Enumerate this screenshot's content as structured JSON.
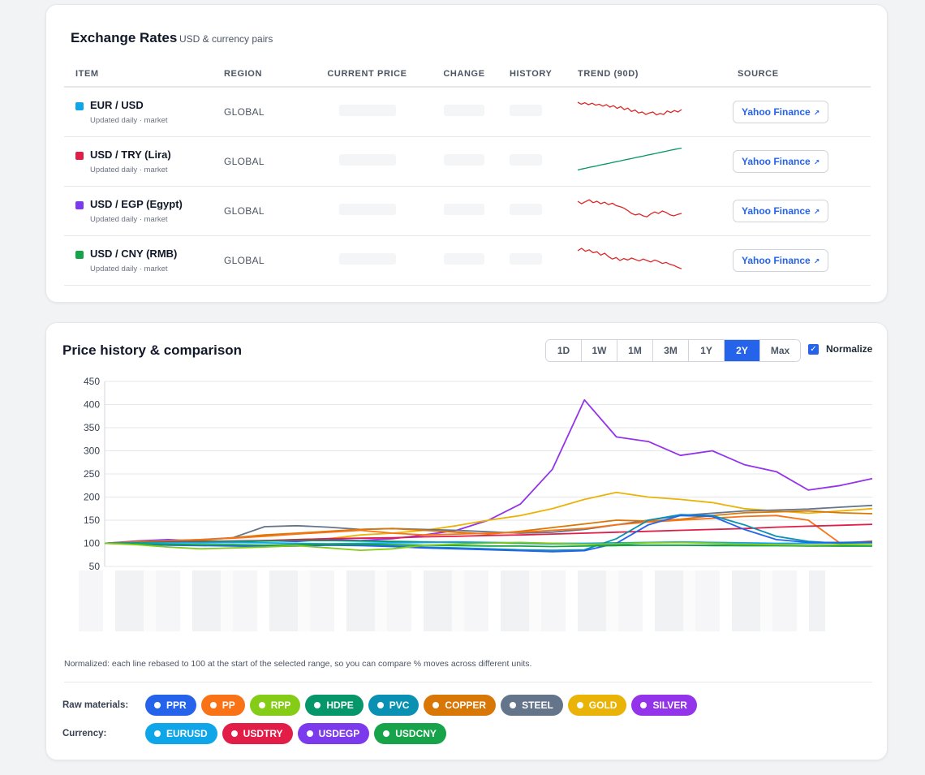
{
  "rates": {
    "title": "Exchange Rates",
    "subtitle": "USD & currency pairs",
    "headers": {
      "item": "ITEM",
      "region": "REGION",
      "current_price": "CURRENT PRICE",
      "change": "CHANGE",
      "history": "HISTORY",
      "trend": "TREND (90D)",
      "source": "SOURCE"
    },
    "rows": [
      {
        "name": "EUR / USD",
        "sub": "Updated daily · market",
        "region": "GLOBAL",
        "color": "#0ea5e9",
        "source": "Yahoo Finance",
        "trend_color": "#dc2626",
        "trend": [
          0.8,
          0.72,
          0.78,
          0.7,
          0.76,
          0.68,
          0.72,
          0.64,
          0.7,
          0.6,
          0.66,
          0.55,
          0.62,
          0.5,
          0.56,
          0.42,
          0.48,
          0.36,
          0.4,
          0.3,
          0.36,
          0.4,
          0.28,
          0.34,
          0.3,
          0.44,
          0.38,
          0.46,
          0.4,
          0.5
        ]
      },
      {
        "name": "USD / TRY (Lira)",
        "sub": "Updated daily · market",
        "region": "GLOBAL",
        "color": "#e11d48",
        "source": "Yahoo Finance",
        "trend_color": "#059669",
        "trend": [
          0.05,
          0.09,
          0.12,
          0.16,
          0.19,
          0.22,
          0.26,
          0.29,
          0.32,
          0.36,
          0.39,
          0.42,
          0.46,
          0.49,
          0.52,
          0.56,
          0.59,
          0.62,
          0.66,
          0.69,
          0.72,
          0.76,
          0.79,
          0.82,
          0.86,
          0.89,
          0.92,
          0.95
        ]
      },
      {
        "name": "USD / EGP (Egypt)",
        "sub": "Updated daily · market",
        "region": "GLOBAL",
        "color": "#7c3aed",
        "source": "Yahoo Finance",
        "trend_color": "#dc2626",
        "trend": [
          0.8,
          0.7,
          0.78,
          0.86,
          0.74,
          0.8,
          0.7,
          0.76,
          0.66,
          0.72,
          0.62,
          0.58,
          0.52,
          0.42,
          0.3,
          0.24,
          0.28,
          0.2,
          0.16,
          0.28,
          0.36,
          0.3,
          0.4,
          0.34,
          0.24,
          0.2,
          0.26,
          0.3
        ]
      },
      {
        "name": "USD / CNY (RMB)",
        "sub": "Updated daily · market",
        "region": "GLOBAL",
        "color": "#16a34a",
        "source": "Yahoo Finance",
        "trend_color": "#dc2626",
        "trend": [
          0.8,
          0.9,
          0.78,
          0.84,
          0.72,
          0.76,
          0.62,
          0.7,
          0.56,
          0.46,
          0.52,
          0.4,
          0.48,
          0.42,
          0.5,
          0.44,
          0.38,
          0.46,
          0.4,
          0.34,
          0.42,
          0.36,
          0.28,
          0.32,
          0.24,
          0.2,
          0.12,
          0.06
        ]
      }
    ]
  },
  "history": {
    "title": "Price history & comparison",
    "ranges": [
      "1D",
      "1W",
      "1M",
      "3M",
      "1Y",
      "2Y",
      "Max"
    ],
    "active_range": "2Y",
    "normalize_label": "Normalize",
    "normalize_checked": true,
    "note": "Normalized: each line rebased to 100 at the start of the selected range, so you can compare % moves across different units.",
    "raw_label": "Raw materials:",
    "currency_label": "Currency:",
    "raw_chips": [
      {
        "label": "PPR",
        "color": "#2563eb"
      },
      {
        "label": "PP",
        "color": "#f97316"
      },
      {
        "label": "RPP",
        "color": "#84cc16"
      },
      {
        "label": "HDPE",
        "color": "#059669"
      },
      {
        "label": "PVC",
        "color": "#0891b2"
      },
      {
        "label": "COPPER",
        "color": "#d97706"
      },
      {
        "label": "STEEL",
        "color": "#64748b"
      },
      {
        "label": "GOLD",
        "color": "#eab308"
      },
      {
        "label": "SILVER",
        "color": "#9333ea"
      }
    ],
    "currency_chips": [
      {
        "label": "EURUSD",
        "color": "#0ea5e9"
      },
      {
        "label": "USDTRY",
        "color": "#e11d48"
      },
      {
        "label": "USDEGP",
        "color": "#7c3aed"
      },
      {
        "label": "USDCNY",
        "color": "#16a34a"
      }
    ]
  },
  "chart_data": {
    "type": "line",
    "y_ticks": [
      "450",
      "400",
      "350",
      "300",
      "250",
      "200",
      "150",
      "100",
      "50"
    ],
    "ylim": [
      50,
      450
    ],
    "grid": true,
    "x": [
      0,
      1,
      2,
      3,
      4,
      5,
      6,
      7,
      8,
      9,
      10,
      11,
      12,
      13,
      14,
      15,
      16,
      17,
      18,
      19,
      20,
      21,
      22,
      23,
      24
    ],
    "series": [
      {
        "key": "silver",
        "color": "#9333ea",
        "values": [
          100,
          105,
          108,
          104,
          102,
          106,
          104,
          108,
          106,
          110,
          118,
          128,
          150,
          185,
          260,
          410,
          330,
          320,
          290,
          300,
          270,
          255,
          215,
          225,
          240
        ]
      },
      {
        "key": "gold",
        "color": "#eab308",
        "values": [
          100,
          102,
          103,
          101,
          104,
          106,
          108,
          110,
          118,
          122,
          128,
          138,
          150,
          160,
          175,
          195,
          210,
          200,
          195,
          188,
          175,
          170,
          165,
          170,
          175
        ]
      },
      {
        "key": "steel",
        "color": "#64748b",
        "values": [
          100,
          104,
          106,
          108,
          112,
          136,
          138,
          135,
          130,
          132,
          130,
          128,
          125,
          122,
          124,
          130,
          140,
          150,
          160,
          165,
          170,
          172,
          174,
          178,
          182
        ]
      },
      {
        "key": "copper",
        "color": "#d97706",
        "values": [
          100,
          102,
          104,
          106,
          112,
          118,
          122,
          126,
          130,
          132,
          128,
          124,
          120,
          126,
          134,
          142,
          150,
          148,
          152,
          160,
          166,
          168,
          170,
          166,
          164
        ]
      },
      {
        "key": "pp",
        "color": "#f97316",
        "values": [
          100,
          103,
          105,
          108,
          111,
          115,
          120,
          124,
          128,
          122,
          118,
          120,
          122,
          124,
          128,
          132,
          140,
          146,
          150,
          154,
          158,
          160,
          150,
          100,
          105
        ]
      },
      {
        "key": "usdtry",
        "color": "#e11d48",
        "values": [
          100,
          101,
          103,
          104,
          105,
          106,
          108,
          110,
          111,
          112,
          114,
          115,
          117,
          118,
          120,
          122,
          124,
          126,
          128,
          130,
          132,
          135,
          137,
          139,
          141
        ]
      },
      {
        "key": "hdpe",
        "color": "#059669",
        "values": [
          100,
          101,
          102,
          103,
          104,
          105,
          106,
          106,
          105,
          104,
          103,
          102,
          101,
          100,
          99,
          98,
          97,
          96,
          96,
          95,
          95,
          95,
          94,
          94,
          94
        ]
      },
      {
        "key": "eurusd",
        "color": "#0ea5e9",
        "values": [
          100,
          100,
          101,
          101,
          102,
          101,
          100,
          99,
          100,
          101,
          102,
          103,
          102,
          101,
          100,
          100,
          101,
          102,
          103,
          102,
          101,
          100,
          100,
          101,
          101
        ]
      },
      {
        "key": "pvc",
        "color": "#0891b2",
        "values": [
          100,
          99,
          97,
          96,
          95,
          94,
          96,
          98,
          96,
          94,
          92,
          90,
          88,
          86,
          85,
          86,
          110,
          150,
          162,
          160,
          140,
          115,
          104,
          100,
          102
        ]
      },
      {
        "key": "ppr",
        "color": "#2563eb",
        "values": [
          100,
          98,
          96,
          95,
          94,
          93,
          94,
          96,
          95,
          93,
          90,
          88,
          86,
          84,
          82,
          84,
          100,
          140,
          160,
          158,
          130,
          108,
          102,
          102,
          103
        ]
      },
      {
        "key": "usdcny",
        "color": "#16a34a",
        "values": [
          100,
          99,
          98,
          97,
          97,
          96,
          97,
          98,
          98,
          97,
          96,
          95,
          94,
          94,
          93,
          94,
          95,
          96,
          96,
          96,
          95,
          95,
          95,
          94,
          94
        ]
      },
      {
        "key": "rpp",
        "color": "#84cc16",
        "values": [
          100,
          97,
          92,
          88,
          90,
          92,
          95,
          90,
          85,
          88,
          96,
          98,
          100,
          102,
          100,
          98,
          99,
          101,
          102,
          100,
          98,
          97,
          96,
          97,
          98
        ]
      }
    ]
  }
}
